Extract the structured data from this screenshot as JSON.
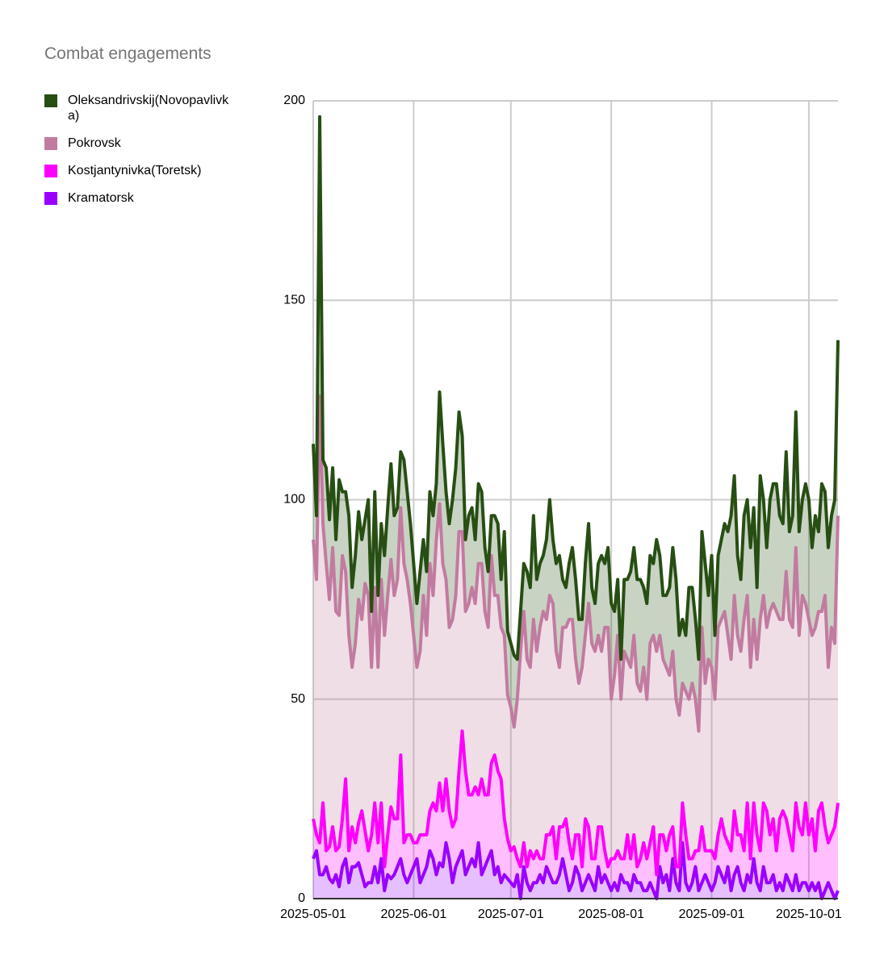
{
  "chart_data": {
    "type": "area",
    "stacked": true,
    "title": "Combat engagements",
    "x": [
      "2025-05-01",
      "2025-05-02",
      "2025-05-03",
      "2025-05-04",
      "2025-05-05",
      "2025-05-06",
      "2025-05-07",
      "2025-05-08",
      "2025-05-09",
      "2025-05-10",
      "2025-05-11",
      "2025-05-12",
      "2025-05-13",
      "2025-05-14",
      "2025-05-15",
      "2025-05-16",
      "2025-05-17",
      "2025-05-18",
      "2025-05-19",
      "2025-05-20",
      "2025-05-21",
      "2025-05-22",
      "2025-05-23",
      "2025-05-24",
      "2025-05-25",
      "2025-05-26",
      "2025-05-27",
      "2025-05-28",
      "2025-05-29",
      "2025-05-30",
      "2025-05-31",
      "2025-06-01",
      "2025-06-02",
      "2025-06-03",
      "2025-06-04",
      "2025-06-05",
      "2025-06-06",
      "2025-06-07",
      "2025-06-08",
      "2025-06-09",
      "2025-06-10",
      "2025-06-11",
      "2025-06-12",
      "2025-06-13",
      "2025-06-14",
      "2025-06-15",
      "2025-06-16",
      "2025-06-17",
      "2025-06-18",
      "2025-06-19",
      "2025-06-20",
      "2025-06-21",
      "2025-06-22",
      "2025-06-23",
      "2025-06-24",
      "2025-06-25",
      "2025-06-26",
      "2025-06-27",
      "2025-06-28",
      "2025-06-29",
      "2025-06-30",
      "2025-07-01",
      "2025-07-02",
      "2025-07-03",
      "2025-07-04",
      "2025-07-05",
      "2025-07-06",
      "2025-07-07",
      "2025-07-08",
      "2025-07-09",
      "2025-07-10",
      "2025-07-11",
      "2025-07-12",
      "2025-07-13",
      "2025-07-14",
      "2025-07-15",
      "2025-07-16",
      "2025-07-17",
      "2025-07-18",
      "2025-07-19",
      "2025-07-20",
      "2025-07-21",
      "2025-07-22",
      "2025-07-23",
      "2025-07-24",
      "2025-07-25",
      "2025-07-26",
      "2025-07-27",
      "2025-07-28",
      "2025-07-29",
      "2025-07-30",
      "2025-07-31",
      "2025-08-01",
      "2025-08-02",
      "2025-08-03",
      "2025-08-04",
      "2025-08-05",
      "2025-08-06",
      "2025-08-07",
      "2025-08-08",
      "2025-08-09",
      "2025-08-10",
      "2025-08-11",
      "2025-08-12",
      "2025-08-13",
      "2025-08-14",
      "2025-08-15",
      "2025-08-16",
      "2025-08-17",
      "2025-08-18",
      "2025-08-19",
      "2025-08-20",
      "2025-08-21",
      "2025-08-22",
      "2025-08-23",
      "2025-08-24",
      "2025-08-25",
      "2025-08-26",
      "2025-08-27",
      "2025-08-28",
      "2025-08-29",
      "2025-08-30",
      "2025-08-31",
      "2025-09-01",
      "2025-09-02",
      "2025-09-03",
      "2025-09-04",
      "2025-09-05",
      "2025-09-06",
      "2025-09-07",
      "2025-09-08",
      "2025-09-09",
      "2025-09-10",
      "2025-09-11",
      "2025-09-12",
      "2025-09-13",
      "2025-09-14",
      "2025-09-15",
      "2025-09-16",
      "2025-09-17",
      "2025-09-18",
      "2025-09-19",
      "2025-09-20",
      "2025-09-21",
      "2025-09-22",
      "2025-09-23",
      "2025-09-24",
      "2025-09-25",
      "2025-09-26",
      "2025-09-27",
      "2025-09-28",
      "2025-09-29",
      "2025-09-30",
      "2025-10-01",
      "2025-10-02",
      "2025-10-03",
      "2025-10-04",
      "2025-10-05",
      "2025-10-06",
      "2025-10-07",
      "2025-10-08",
      "2025-10-09",
      "2025-10-10"
    ],
    "series": [
      {
        "name": "Oleksandrivskij(Novopavlivka)",
        "color": "#274e13",
        "values": [
          24,
          16,
          70,
          16,
          24,
          20,
          20,
          18,
          34,
          16,
          20,
          30,
          20,
          22,
          22,
          20,
          16,
          24,
          14,
          24,
          18,
          14,
          20,
          22,
          24,
          20,
          18,
          14,
          26,
          22,
          20,
          18,
          16,
          20,
          14,
          16,
          18,
          20,
          14,
          28,
          30,
          22,
          26,
          30,
          32,
          30,
          24,
          18,
          22,
          20,
          16,
          20,
          18,
          16,
          14,
          10,
          20,
          18,
          12,
          26,
          16,
          16,
          18,
          10,
          10,
          12,
          22,
          20,
          26,
          18,
          16,
          14,
          20,
          24,
          16,
          22,
          28,
          12,
          10,
          14,
          18,
          20,
          16,
          12,
          18,
          20,
          14,
          12,
          18,
          24,
          16,
          20,
          24,
          16,
          14,
          10,
          18,
          20,
          24,
          22,
          26,
          28,
          20,
          24,
          22,
          18,
          28,
          20,
          16,
          18,
          22,
          26,
          30,
          20,
          16,
          14,
          28,
          24,
          20,
          18,
          24,
          30,
          16,
          28,
          16,
          18,
          20,
          22,
          26,
          36,
          30,
          20,
          18,
          26,
          24,
          30,
          28,
          18,
          36,
          24,
          20,
          28,
          30,
          32,
          26,
          24,
          30,
          22,
          28,
          34,
          26,
          24,
          30,
          30,
          22,
          28,
          20,
          32,
          26,
          30,
          28,
          36,
          44
        ]
      },
      {
        "name": "Pokrovsk",
        "color": "#c27ba0",
        "values": [
          70,
          64,
          112,
          70,
          72,
          62,
          70,
          60,
          58,
          66,
          52,
          54,
          40,
          50,
          56,
          48,
          62,
          64,
          42,
          54,
          44,
          56,
          58,
          60,
          62,
          56,
          60,
          62,
          70,
          64,
          58,
          52,
          44,
          46,
          60,
          50,
          62,
          52,
          68,
          70,
          62,
          50,
          46,
          52,
          56,
          60,
          50,
          40,
          48,
          52,
          46,
          58,
          54,
          46,
          42,
          52,
          40,
          44,
          38,
          46,
          36,
          36,
          30,
          40,
          54,
          58,
          52,
          46,
          60,
          50,
          58,
          62,
          54,
          60,
          56,
          52,
          40,
          50,
          48,
          56,
          60,
          44,
          38,
          50,
          46,
          56,
          54,
          52,
          48,
          44,
          56,
          60,
          40,
          46,
          54,
          40,
          52,
          44,
          48,
          50,
          46,
          42,
          44,
          40,
          50,
          48,
          56,
          50,
          44,
          46,
          40,
          44,
          42,
          38,
          30,
          36,
          40,
          44,
          38,
          30,
          50,
          42,
          48,
          46,
          40,
          52,
          50,
          56,
          52,
          48,
          54,
          50,
          46,
          58,
          52,
          48,
          46,
          44,
          58,
          52,
          46,
          56,
          54,
          60,
          50,
          48,
          62,
          54,
          56,
          64,
          48,
          60,
          50,
          54,
          46,
          56,
          50,
          48,
          58,
          44,
          52,
          46,
          72
        ]
      },
      {
        "name": "Kostjantynivka(Toretsk)",
        "color": "#ff00ff",
        "values": [
          10,
          4,
          8,
          18,
          4,
          8,
          14,
          6,
          10,
          12,
          20,
          8,
          10,
          6,
          10,
          16,
          14,
          8,
          12,
          16,
          10,
          14,
          6,
          10,
          18,
          14,
          12,
          26,
          8,
          12,
          10,
          6,
          4,
          12,
          10,
          8,
          10,
          14,
          16,
          20,
          14,
          16,
          12,
          14,
          12,
          22,
          30,
          26,
          18,
          16,
          20,
          12,
          24,
          18,
          16,
          22,
          30,
          24,
          26,
          14,
          10,
          8,
          10,
          4,
          8,
          6,
          4,
          10,
          6,
          8,
          4,
          6,
          8,
          10,
          14,
          6,
          12,
          8,
          14,
          12,
          6,
          8,
          10,
          6,
          16,
          12,
          6,
          8,
          10,
          14,
          6,
          4,
          8,
          6,
          10,
          4,
          6,
          12,
          8,
          10,
          4,
          6,
          12,
          8,
          10,
          16,
          6,
          8,
          12,
          6,
          14,
          8,
          4,
          6,
          10,
          12,
          8,
          6,
          4,
          10,
          14,
          6,
          8,
          10,
          6,
          8,
          14,
          12,
          6,
          10,
          16,
          8,
          12,
          10,
          18,
          6,
          14,
          12,
          10,
          16,
          18,
          12,
          14,
          10,
          16,
          20,
          14,
          12,
          10,
          18,
          16,
          12,
          20,
          14,
          16,
          10,
          18,
          24,
          16,
          10,
          14,
          18,
          22
        ]
      },
      {
        "name": "Kramatorsk",
        "color": "#9900ff",
        "values": [
          10,
          12,
          6,
          6,
          8,
          5,
          4,
          6,
          3,
          8,
          10,
          4,
          8,
          8,
          9,
          6,
          3,
          4,
          4,
          8,
          4,
          10,
          2,
          6,
          5,
          6,
          8,
          10,
          6,
          4,
          6,
          8,
          10,
          4,
          6,
          8,
          12,
          10,
          6,
          9,
          8,
          14,
          10,
          4,
          8,
          10,
          12,
          6,
          8,
          10,
          8,
          14,
          6,
          8,
          10,
          12,
          6,
          8,
          4,
          6,
          5,
          4,
          3,
          6,
          0,
          8,
          4,
          2,
          4,
          4,
          6,
          4,
          8,
          6,
          4,
          4,
          6,
          10,
          6,
          2,
          4,
          8,
          6,
          2,
          4,
          6,
          4,
          2,
          8,
          4,
          6,
          4,
          2,
          4,
          2,
          6,
          4,
          4,
          2,
          6,
          4,
          4,
          2,
          2,
          4,
          2,
          0,
          8,
          4,
          6,
          2,
          10,
          4,
          2,
          14,
          4,
          2,
          4,
          8,
          2,
          4,
          6,
          4,
          2,
          4,
          8,
          6,
          4,
          8,
          2,
          6,
          8,
          4,
          2,
          6,
          4,
          10,
          4,
          2,
          8,
          4,
          4,
          6,
          2,
          4,
          2,
          6,
          4,
          2,
          6,
          2,
          4,
          4,
          2,
          4,
          2,
          4,
          0,
          2,
          4,
          2,
          0,
          2
        ]
      }
    ],
    "xlim": [
      "2025-05-01",
      "2025-10-10"
    ],
    "xticks": [
      "2025-05-01",
      "2025-06-01",
      "2025-07-01",
      "2025-08-01",
      "2025-09-01",
      "2025-10-01"
    ],
    "ylim": [
      0,
      200
    ],
    "yticks": [
      0,
      50,
      100,
      150,
      200
    ],
    "grid": true,
    "legend": "left"
  }
}
